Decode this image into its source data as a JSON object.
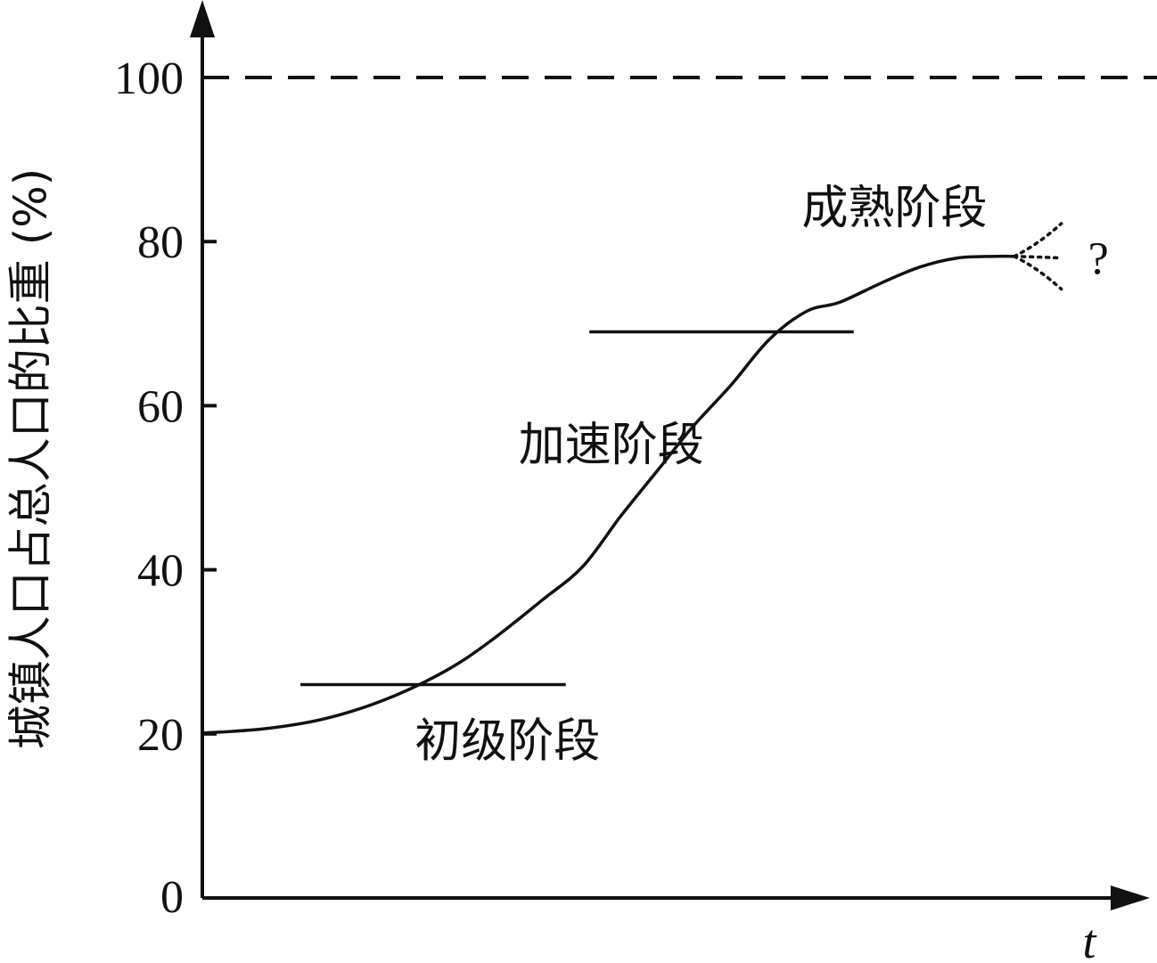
{
  "chart_data": {
    "type": "line",
    "ylabel": "城镇人口占总人口的比重 (%)",
    "xlabel": "t",
    "ylim": [
      0,
      100
    ],
    "yticks": [
      0,
      20,
      40,
      60,
      80,
      100
    ],
    "ytick_labels": [
      "0",
      "20",
      "40",
      "60",
      "80",
      "100"
    ],
    "reference_line": {
      "y": 100,
      "style": "dashed"
    },
    "series": [
      {
        "points": [
          [
            0,
            20.1
          ],
          [
            0.064,
            20.6
          ],
          [
            0.128,
            21.8
          ],
          [
            0.192,
            24.1
          ],
          [
            0.255,
            27.5
          ],
          [
            0.304,
            31.2
          ],
          [
            0.36,
            36.3
          ],
          [
            0.403,
            40.4
          ],
          [
            0.443,
            46.5
          ],
          [
            0.485,
            52.5
          ],
          [
            0.52,
            57.5
          ],
          [
            0.56,
            62.5
          ],
          [
            0.6,
            68.0
          ],
          [
            0.64,
            71.5
          ],
          [
            0.675,
            72.6
          ],
          [
            0.72,
            75.0
          ],
          [
            0.76,
            76.9
          ],
          [
            0.8,
            78.0
          ],
          [
            0.84,
            78.2
          ],
          [
            0.86,
            78.2
          ]
        ]
      }
    ],
    "projection": {
      "start": [
        0.86,
        78.2
      ],
      "ends": [
        [
          0.91,
          82.2
        ],
        [
          0.91,
          78.0
        ],
        [
          0.91,
          74.2
        ]
      ],
      "style": "dotted",
      "label": "?"
    },
    "thresholds": [
      {
        "y": 26,
        "x_range": [
          0.104,
          0.385
        ]
      },
      {
        "y": 69,
        "x_range": [
          0.41,
          0.69
        ]
      }
    ],
    "stages": [
      {
        "label": "初级阶段",
        "x": 0.225,
        "y": 17.2
      },
      {
        "label": "加速阶段",
        "x": 0.335,
        "y": 53.3
      },
      {
        "label": "成熟阶段",
        "x": 0.635,
        "y": 82.2
      }
    ]
  }
}
